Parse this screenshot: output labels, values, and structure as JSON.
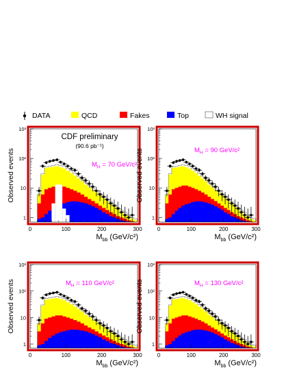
{
  "legend": [
    {
      "label": "DATA",
      "kind": "marker"
    },
    {
      "label": "QCD",
      "color": "#ffff00"
    },
    {
      "label": "Fakes",
      "color": "#ff0000"
    },
    {
      "label": "Top",
      "color": "#0000ff"
    },
    {
      "label": "WH signal",
      "color": "#ffffff",
      "outline": "#777777"
    }
  ],
  "colors": {
    "frame": "#cc0000",
    "annotation": "#ff00ff"
  },
  "header": {
    "title": "CDF preliminary",
    "lumi": "(90.6 pb⁻¹)"
  },
  "chart_data": [
    {
      "type": "area",
      "stacked": true,
      "yscale": "log",
      "ylim": [
        0.7,
        1000
      ],
      "xlim": [
        0,
        300
      ],
      "xticks": [
        0,
        100,
        200,
        300
      ],
      "yticks": [
        "1",
        "10",
        "10²",
        "10³"
      ],
      "xlabel": "M",
      "xlabel_sub": "bb",
      "xlabel_unit": "(GeV/c²)",
      "ylabel": "Observed events",
      "annotation": "M",
      "annotation_sub": "H",
      "annotation_value": " = 70 GeV/c²",
      "x_bin_edges": [
        20,
        30,
        40,
        50,
        60,
        70,
        80,
        90,
        100,
        110,
        120,
        130,
        140,
        150,
        160,
        170,
        180,
        190,
        200,
        210,
        220,
        230,
        240,
        250,
        260,
        270,
        280,
        290,
        300
      ],
      "series": [
        {
          "name": "Top",
          "values": [
            0.9,
            1.0,
            1.3,
            1.7,
            2.1,
            2.5,
            2.8,
            3.0,
            3.3,
            3.5,
            3.5,
            3.4,
            3.2,
            3.0,
            2.7,
            2.4,
            2.1,
            1.8,
            1.5,
            1.3,
            1.1,
            1.0,
            0.9,
            0.8,
            0.75,
            0.72,
            0.7,
            0.7
          ]
        },
        {
          "name": "Fakes",
          "values": [
            3,
            6,
            9,
            10,
            11,
            12,
            12,
            11,
            10,
            9,
            8,
            7,
            6,
            5,
            4.2,
            3.6,
            3,
            2.5,
            2.1,
            1.8,
            1.5,
            1.3,
            1.1,
            1.0,
            0.9,
            0.8,
            0.75,
            0.7
          ]
        },
        {
          "name": "QCD",
          "values": [
            6,
            28,
            48,
            50,
            52,
            55,
            50,
            45,
            38,
            32,
            26,
            21,
            17,
            13,
            10.5,
            8.5,
            7,
            5.5,
            4.5,
            3.6,
            2.9,
            2.3,
            1.9,
            1.6,
            1.3,
            1.1,
            0.9,
            0.8
          ]
        },
        {
          "name": "WH signal",
          "values": [
            6,
            30,
            52,
            55,
            58,
            62,
            58,
            53,
            45,
            38,
            31,
            25,
            20,
            15.5,
            12.5,
            10,
            8.2,
            6.5,
            5.3,
            4.3,
            3.4,
            2.7,
            2.2,
            1.8,
            1.5,
            1.2,
            1.0,
            0.9
          ]
        }
      ],
      "signal_mode": "gap",
      "data_points": {
        "x": [
          25,
          35,
          45,
          55,
          65,
          75,
          85,
          95,
          105,
          115,
          125,
          135,
          145,
          155,
          165,
          175,
          185,
          195,
          205,
          215,
          225,
          235,
          245,
          255,
          265,
          275,
          285
        ],
        "y": [
          8,
          55,
          72,
          80,
          85,
          90,
          75,
          65,
          55,
          45,
          40,
          30,
          22,
          18,
          14,
          11,
          8,
          6,
          5,
          4,
          3,
          2.5,
          2,
          1.5,
          1.2,
          1,
          1.2
        ]
      }
    },
    {
      "type": "area",
      "stacked": true,
      "yscale": "log",
      "ylim": [
        0.7,
        1000
      ],
      "xlim": [
        0,
        300
      ],
      "xticks": [
        0,
        100,
        200,
        300
      ],
      "yticks": [
        "1",
        "10",
        "10²",
        "10³"
      ],
      "xlabel": "M",
      "xlabel_sub": "bb",
      "xlabel_unit": "(GeV/c²)",
      "ylabel": "Observed events",
      "annotation": "M",
      "annotation_sub": "H",
      "annotation_value": " = 90 GeV/c²",
      "x_bin_edges": [
        20,
        30,
        40,
        50,
        60,
        70,
        80,
        90,
        100,
        110,
        120,
        130,
        140,
        150,
        160,
        170,
        180,
        190,
        200,
        210,
        220,
        230,
        240,
        250,
        260,
        270,
        280,
        290,
        300
      ],
      "series": [
        {
          "name": "Top",
          "values": [
            0.9,
            1.0,
            1.3,
            1.7,
            2.1,
            2.5,
            2.8,
            3.0,
            3.3,
            3.5,
            3.5,
            3.4,
            3.2,
            3.0,
            2.7,
            2.4,
            2.1,
            1.8,
            1.5,
            1.3,
            1.1,
            1.0,
            0.9,
            0.8,
            0.75,
            0.72,
            0.7,
            0.7
          ]
        },
        {
          "name": "Fakes",
          "values": [
            3,
            6,
            9,
            10,
            11,
            12,
            12,
            11,
            10,
            9,
            8,
            7,
            6,
            5,
            4.2,
            3.6,
            3,
            2.5,
            2.1,
            1.8,
            1.5,
            1.3,
            1.1,
            1.0,
            0.9,
            0.8,
            0.75,
            0.7
          ]
        },
        {
          "name": "QCD",
          "values": [
            6,
            28,
            48,
            50,
            52,
            55,
            50,
            45,
            38,
            32,
            26,
            21,
            17,
            13,
            10.5,
            8.5,
            7,
            5.5,
            4.5,
            3.6,
            2.9,
            2.3,
            1.9,
            1.6,
            1.3,
            1.1,
            0.9,
            0.8
          ]
        },
        {
          "name": "WH signal",
          "values": [
            6,
            30,
            52,
            55,
            58,
            62,
            58,
            53,
            45,
            38,
            31,
            25,
            20,
            15.5,
            12.5,
            10,
            8.2,
            6.5,
            5.3,
            4.3,
            3.4,
            2.7,
            2.2,
            1.8,
            1.5,
            1.2,
            1.0,
            0.9
          ]
        }
      ],
      "data_points": {
        "x": [
          25,
          35,
          45,
          55,
          65,
          75,
          85,
          95,
          105,
          115,
          125,
          135,
          145,
          155,
          165,
          175,
          185,
          195,
          205,
          215,
          225,
          235,
          245,
          255,
          265,
          275,
          285
        ],
        "y": [
          8,
          55,
          72,
          80,
          85,
          90,
          75,
          65,
          55,
          45,
          40,
          30,
          22,
          18,
          14,
          11,
          8,
          6,
          5,
          4,
          3,
          2.5,
          2,
          1.5,
          1.2,
          1,
          1.2
        ]
      }
    },
    {
      "type": "area",
      "stacked": true,
      "yscale": "log",
      "ylim": [
        0.7,
        1000
      ],
      "xlim": [
        0,
        300
      ],
      "xticks": [
        0,
        100,
        200,
        300
      ],
      "yticks": [
        "1",
        "10",
        "10²",
        "10³"
      ],
      "xlabel": "M",
      "xlabel_sub": "bb",
      "xlabel_unit": "(GeV/c²)",
      "ylabel": "Observed events",
      "annotation": "M",
      "annotation_sub": "H",
      "annotation_value": " = 110 GeV/c²",
      "x_bin_edges": [
        20,
        30,
        40,
        50,
        60,
        70,
        80,
        90,
        100,
        110,
        120,
        130,
        140,
        150,
        160,
        170,
        180,
        190,
        200,
        210,
        220,
        230,
        240,
        250,
        260,
        270,
        280,
        290,
        300
      ],
      "series": [
        {
          "name": "Top",
          "values": [
            0.9,
            1.0,
            1.3,
            1.7,
            2.1,
            2.5,
            2.8,
            3.0,
            3.3,
            3.5,
            3.5,
            3.4,
            3.2,
            3.0,
            2.7,
            2.4,
            2.1,
            1.8,
            1.5,
            1.3,
            1.1,
            1.0,
            0.9,
            0.8,
            0.75,
            0.72,
            0.7,
            0.7
          ]
        },
        {
          "name": "Fakes",
          "values": [
            3,
            6,
            9,
            10,
            11,
            12,
            12,
            11,
            10,
            9,
            8,
            7,
            6,
            5,
            4.2,
            3.6,
            3,
            2.5,
            2.1,
            1.8,
            1.5,
            1.3,
            1.1,
            1.0,
            0.9,
            0.8,
            0.75,
            0.7
          ]
        },
        {
          "name": "QCD",
          "values": [
            6,
            28,
            48,
            50,
            52,
            55,
            50,
            45,
            38,
            32,
            26,
            21,
            17,
            13,
            10.5,
            8.5,
            7,
            5.5,
            4.5,
            3.6,
            2.9,
            2.3,
            1.9,
            1.6,
            1.3,
            1.1,
            0.9,
            0.8
          ]
        },
        {
          "name": "WH signal",
          "values": [
            6,
            30,
            52,
            55,
            58,
            62,
            58,
            53,
            45,
            38,
            31,
            25,
            20,
            15.5,
            12.5,
            10,
            8.2,
            6.5,
            5.3,
            4.3,
            3.4,
            2.7,
            2.2,
            1.8,
            1.5,
            1.2,
            1.0,
            0.9
          ]
        }
      ],
      "data_points": {
        "x": [
          25,
          35,
          45,
          55,
          65,
          75,
          85,
          95,
          105,
          115,
          125,
          135,
          145,
          155,
          165,
          175,
          185,
          195,
          205,
          215,
          225,
          235,
          245,
          255,
          265,
          275,
          285
        ],
        "y": [
          8,
          55,
          72,
          80,
          85,
          90,
          75,
          65,
          55,
          45,
          40,
          30,
          22,
          18,
          14,
          11,
          8,
          6,
          5,
          4,
          3,
          2.5,
          2,
          1.5,
          1.2,
          1,
          1.2
        ]
      }
    },
    {
      "type": "area",
      "stacked": true,
      "yscale": "log",
      "ylim": [
        0.7,
        1000
      ],
      "xlim": [
        0,
        300
      ],
      "xticks": [
        0,
        100,
        200,
        300
      ],
      "yticks": [
        "1",
        "10",
        "10²",
        "10³"
      ],
      "xlabel": "M",
      "xlabel_sub": "bb",
      "xlabel_unit": "(GeV/c²)",
      "ylabel": "Observed events",
      "annotation": "M",
      "annotation_sub": "H",
      "annotation_value": " = 130 GeV/c²",
      "x_bin_edges": [
        20,
        30,
        40,
        50,
        60,
        70,
        80,
        90,
        100,
        110,
        120,
        130,
        140,
        150,
        160,
        170,
        180,
        190,
        200,
        210,
        220,
        230,
        240,
        250,
        260,
        270,
        280,
        290,
        300
      ],
      "series": [
        {
          "name": "Top",
          "values": [
            0.9,
            1.0,
            1.3,
            1.7,
            2.1,
            2.5,
            2.8,
            3.0,
            3.3,
            3.5,
            3.5,
            3.4,
            3.2,
            3.0,
            2.7,
            2.4,
            2.1,
            1.8,
            1.5,
            1.3,
            1.1,
            1.0,
            0.9,
            0.8,
            0.75,
            0.72,
            0.7,
            0.7
          ]
        },
        {
          "name": "Fakes",
          "values": [
            3,
            6,
            9,
            10,
            11,
            12,
            12,
            11,
            10,
            9,
            8,
            7,
            6,
            5,
            4.2,
            3.6,
            3,
            2.5,
            2.1,
            1.8,
            1.5,
            1.3,
            1.1,
            1.0,
            0.9,
            0.8,
            0.75,
            0.7
          ]
        },
        {
          "name": "QCD",
          "values": [
            6,
            28,
            48,
            50,
            52,
            55,
            50,
            45,
            38,
            32,
            26,
            21,
            17,
            13,
            10.5,
            8.5,
            7,
            5.5,
            4.5,
            3.6,
            2.9,
            2.3,
            1.9,
            1.6,
            1.3,
            1.1,
            0.9,
            0.8
          ]
        },
        {
          "name": "WH signal",
          "values": [
            6,
            30,
            52,
            55,
            58,
            62,
            58,
            53,
            45,
            38,
            31,
            25,
            20,
            15.5,
            12.5,
            10,
            8.2,
            6.5,
            5.3,
            4.3,
            3.4,
            2.7,
            2.2,
            1.8,
            1.5,
            1.2,
            1.0,
            0.9
          ]
        }
      ],
      "data_points": {
        "x": [
          25,
          35,
          45,
          55,
          65,
          75,
          85,
          95,
          105,
          115,
          125,
          135,
          145,
          155,
          165,
          175,
          185,
          195,
          205,
          215,
          225,
          235,
          245,
          255,
          265,
          275,
          285
        ],
        "y": [
          8,
          55,
          72,
          80,
          85,
          90,
          75,
          65,
          55,
          45,
          40,
          30,
          22,
          18,
          14,
          11,
          8,
          6,
          5,
          4,
          3,
          2.5,
          2,
          1.5,
          1.2,
          1,
          1.2
        ]
      }
    }
  ]
}
